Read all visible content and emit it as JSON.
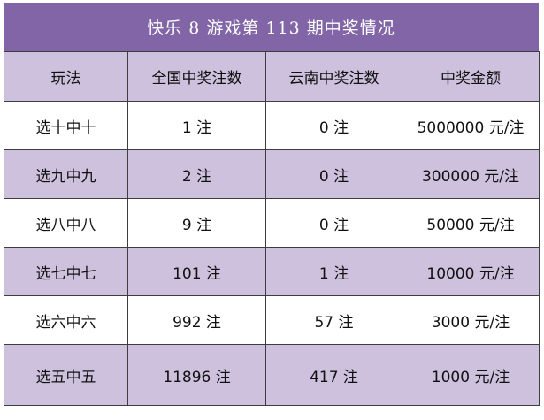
{
  "title": "快乐 8 游戏第 113 期中奖情况",
  "columns": [
    "玩法",
    "全国中奖注数",
    "云南中奖注数",
    "中奖金额"
  ],
  "rows": [
    {
      "play": "选十中十",
      "national": "1 注",
      "yunnan": "0 注",
      "amount": "5000000 元/注"
    },
    {
      "play": "选九中九",
      "national": "2 注",
      "yunnan": "0 注",
      "amount": "300000 元/注"
    },
    {
      "play": "选八中八",
      "national": "9 注",
      "yunnan": "0 注",
      "amount": "50000 元/注"
    },
    {
      "play": "选七中七",
      "national": "101 注",
      "yunnan": "1 注",
      "amount": "10000 元/注"
    },
    {
      "play": "选六中六",
      "national": "992 注",
      "yunnan": "57 注",
      "amount": "3000 元/注"
    },
    {
      "play": "选五中五",
      "national": "11896 注",
      "yunnan": "417 注",
      "amount": "1000 元/注"
    }
  ],
  "colors": {
    "header": "#8265a7",
    "band": "#cdc1de",
    "border": "#3d3d3d"
  }
}
